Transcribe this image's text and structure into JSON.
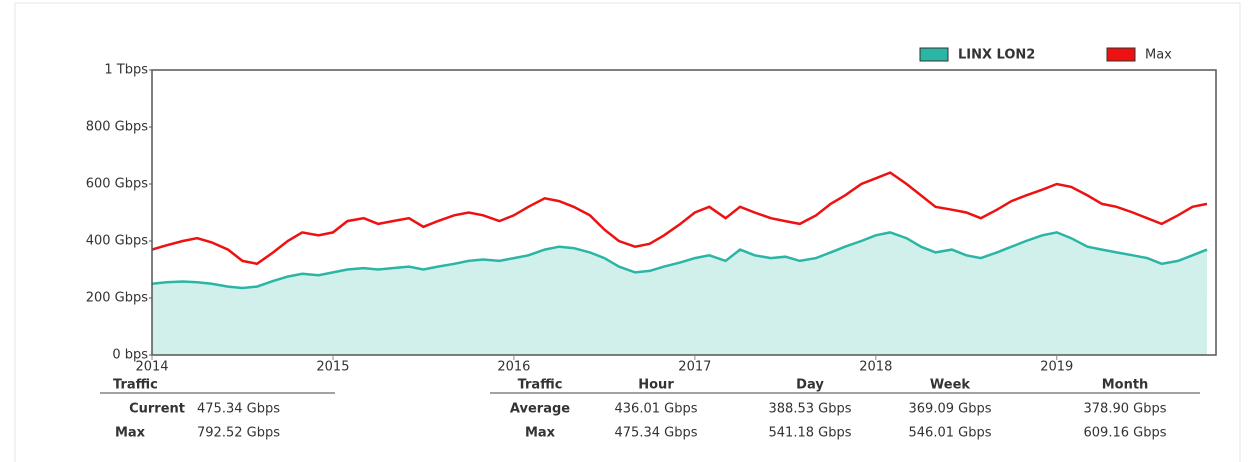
{
  "chart_data": {
    "type": "area",
    "x": [
      2014,
      2014.08,
      2014.17,
      2014.25,
      2014.33,
      2014.42,
      2014.5,
      2014.58,
      2014.67,
      2014.75,
      2014.83,
      2014.92,
      2015,
      2015.08,
      2015.17,
      2015.25,
      2015.33,
      2015.42,
      2015.5,
      2015.58,
      2015.67,
      2015.75,
      2015.83,
      2015.92,
      2016,
      2016.08,
      2016.17,
      2016.25,
      2016.33,
      2016.42,
      2016.5,
      2016.58,
      2016.67,
      2016.75,
      2016.83,
      2016.92,
      2017,
      2017.08,
      2017.17,
      2017.25,
      2017.33,
      2017.42,
      2017.5,
      2017.58,
      2017.67,
      2017.75,
      2017.83,
      2017.92,
      2018,
      2018.08,
      2018.17,
      2018.25,
      2018.33,
      2018.42,
      2018.5,
      2018.58,
      2018.67,
      2018.75,
      2018.83,
      2018.92,
      2019,
      2019.08,
      2019.17,
      2019.25,
      2019.33,
      2019.42,
      2019.5,
      2019.58,
      2019.67,
      2019.75,
      2019.83
    ],
    "series": [
      {
        "name": "LINX LON2",
        "color": "#2bb5a5",
        "fill": "#d2f0eb",
        "values": [
          250,
          255,
          258,
          255,
          250,
          240,
          235,
          240,
          260,
          275,
          285,
          280,
          290,
          300,
          305,
          300,
          305,
          310,
          300,
          310,
          320,
          330,
          335,
          330,
          340,
          350,
          370,
          380,
          375,
          360,
          340,
          310,
          290,
          295,
          310,
          325,
          340,
          350,
          330,
          370,
          350,
          340,
          345,
          330,
          340,
          360,
          380,
          400,
          420,
          430,
          410,
          380,
          360,
          370,
          350,
          340,
          360,
          380,
          400,
          420,
          430,
          410,
          380,
          370,
          360,
          350,
          340,
          320,
          330,
          350,
          370
        ]
      },
      {
        "name": "Max",
        "color": "#ee1111",
        "values": [
          370,
          385,
          400,
          410,
          395,
          370,
          330,
          320,
          360,
          400,
          430,
          420,
          430,
          470,
          480,
          460,
          470,
          480,
          450,
          470,
          490,
          500,
          490,
          470,
          490,
          520,
          550,
          540,
          520,
          490,
          440,
          400,
          380,
          390,
          420,
          460,
          500,
          520,
          480,
          520,
          500,
          480,
          470,
          460,
          490,
          530,
          560,
          600,
          620,
          640,
          600,
          560,
          520,
          510,
          500,
          480,
          510,
          540,
          560,
          580,
          600,
          590,
          560,
          530,
          520,
          500,
          480,
          460,
          490,
          520,
          530
        ]
      }
    ],
    "xlim": [
      2014,
      2019.88
    ],
    "xticks": [
      2014,
      2015,
      2016,
      2017,
      2018,
      2019
    ],
    "ylim": [
      0,
      1000
    ],
    "yticks": [
      {
        "value": 0,
        "label": "0 bps"
      },
      {
        "value": 200,
        "label": "200 Gbps"
      },
      {
        "value": 400,
        "label": "400 Gbps"
      },
      {
        "value": 600,
        "label": "600 Gbps"
      },
      {
        "value": 800,
        "label": "800 Gbps"
      },
      {
        "value": 1000,
        "label": "1 Tbps"
      }
    ],
    "grid": false,
    "legend": "top-right"
  },
  "summary_table": {
    "header": [
      "Traffic"
    ],
    "rows": [
      [
        "Current",
        "475.34 Gbps"
      ],
      [
        "Max",
        "792.52 Gbps"
      ]
    ]
  },
  "stats_table": {
    "header": [
      "Traffic",
      "Hour",
      "Day",
      "Week",
      "Month"
    ],
    "rows": [
      [
        "Average",
        "436.01 Gbps",
        "388.53 Gbps",
        "369.09 Gbps",
        "378.90 Gbps"
      ],
      [
        "Max",
        "475.34 Gbps",
        "541.18 Gbps",
        "546.01 Gbps",
        "609.16 Gbps"
      ]
    ]
  }
}
